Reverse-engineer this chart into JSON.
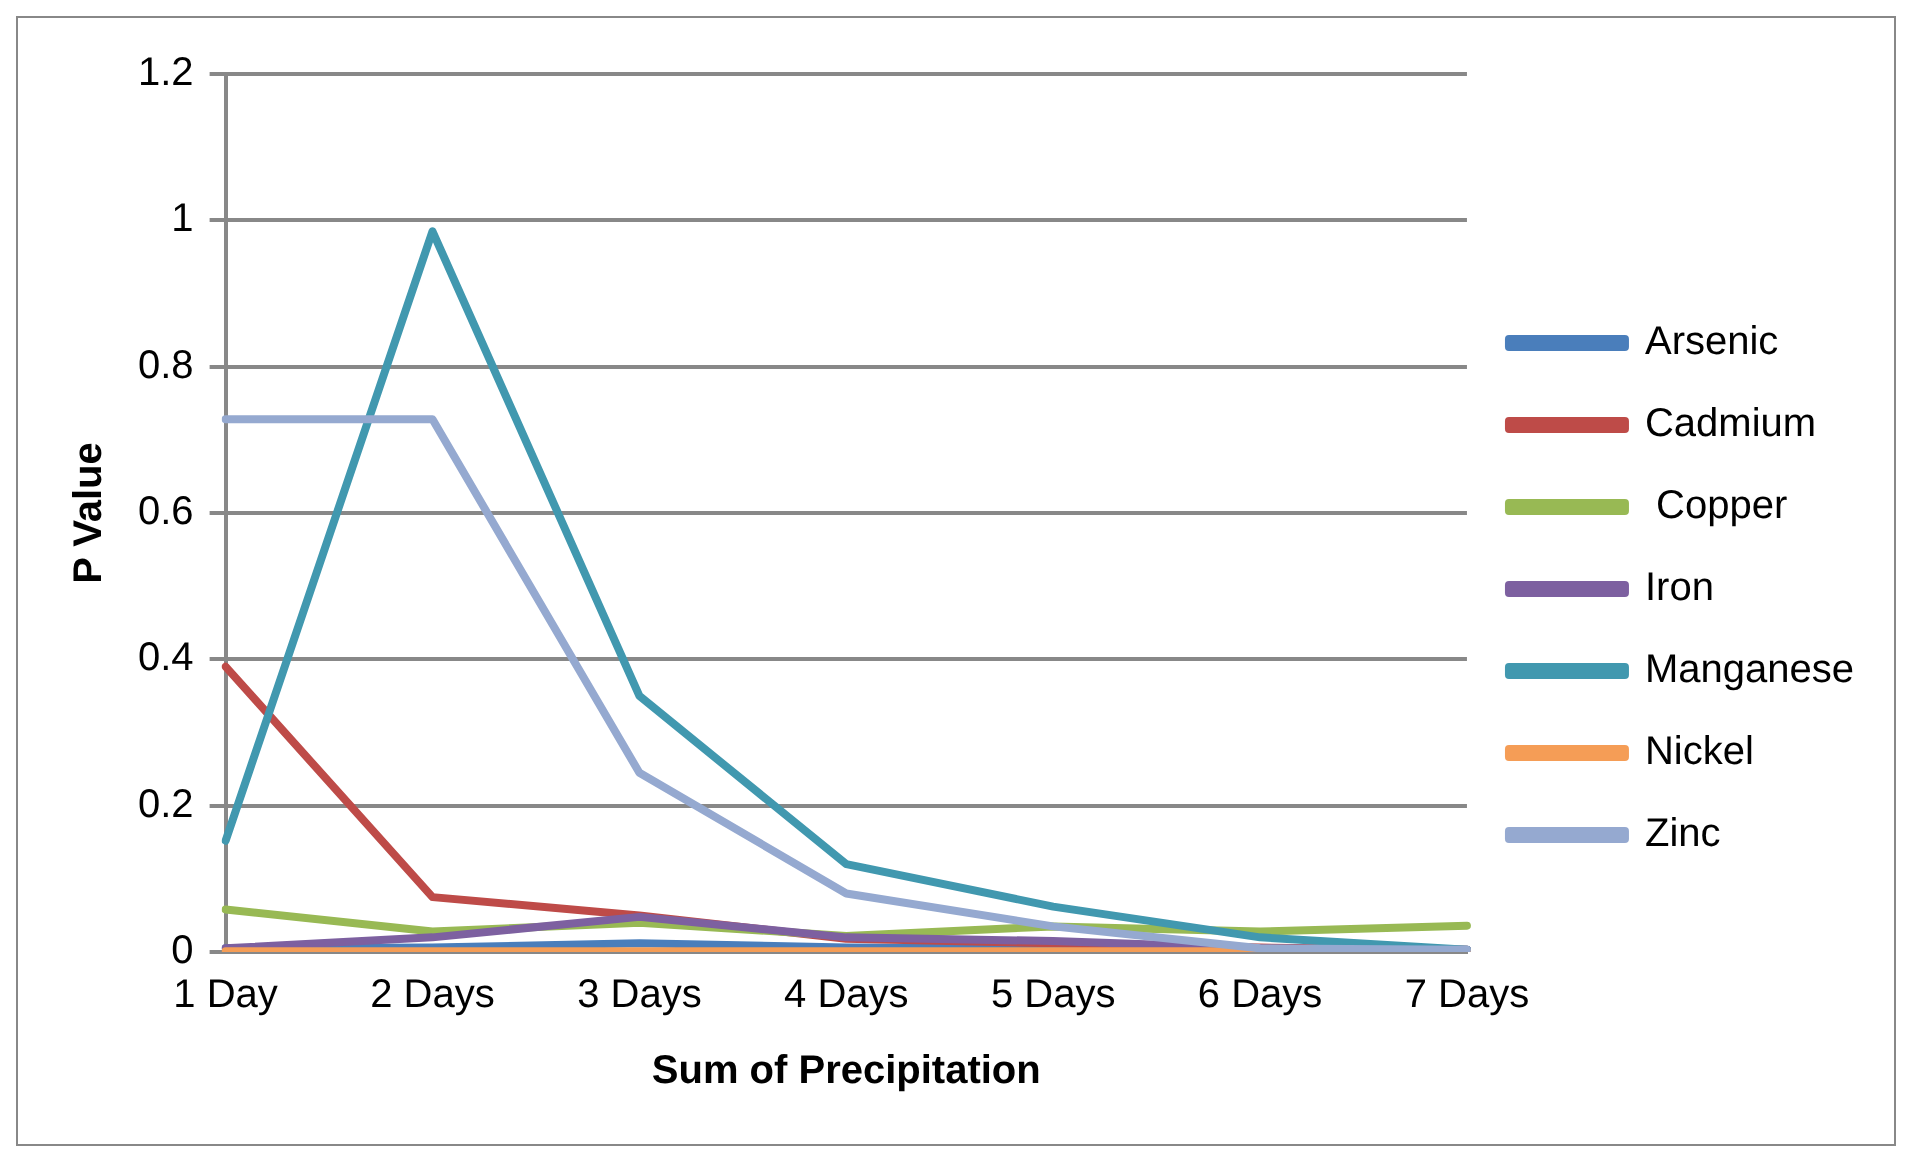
{
  "chart_data": {
    "type": "line",
    "xlabel": "Sum of Precipitation",
    "ylabel": "P Value",
    "categories": [
      "1 Day",
      "2 Days",
      "3 Days",
      "4 Days",
      "5 Days",
      "6 Days",
      "7 Days"
    ],
    "series": [
      {
        "name": "Arsenic",
        "color": "#4a7ebb",
        "values": [
          0.005,
          0.006,
          0.012,
          0.006,
          0.005,
          0.003,
          0.002
        ]
      },
      {
        "name": "Cadmium",
        "color": "#be4b48",
        "values": [
          0.39,
          0.075,
          0.05,
          0.018,
          0.012,
          0.006,
          0.003
        ]
      },
      {
        "name": " Copper",
        "color": "#98b954",
        "values": [
          0.058,
          0.028,
          0.04,
          0.022,
          0.035,
          0.028,
          0.036
        ]
      },
      {
        "name": "Iron",
        "color": "#7d60a0",
        "values": [
          0.005,
          0.02,
          0.048,
          0.02,
          0.015,
          0.005,
          0.003
        ]
      },
      {
        "name": "Manganese",
        "color": "#4198af",
        "values": [
          0.152,
          0.985,
          0.35,
          0.12,
          0.062,
          0.02,
          0.003
        ]
      },
      {
        "name": "Nickel",
        "color": "#f59d56",
        "values": [
          0.001,
          0.001,
          0.001,
          0.001,
          0.001,
          0.001,
          0.001
        ]
      },
      {
        "name": "Zinc",
        "color": "#95a9d0",
        "values": [
          0.728,
          0.728,
          0.245,
          0.08,
          0.035,
          0.005,
          0.003
        ]
      }
    ],
    "ylim": [
      0,
      1.2
    ],
    "yticks": [
      0,
      0.2,
      0.4,
      0.6,
      0.8,
      1,
      1.2
    ],
    "grid": "y",
    "legend": "right",
    "marker": "none",
    "line_style": "solid"
  }
}
